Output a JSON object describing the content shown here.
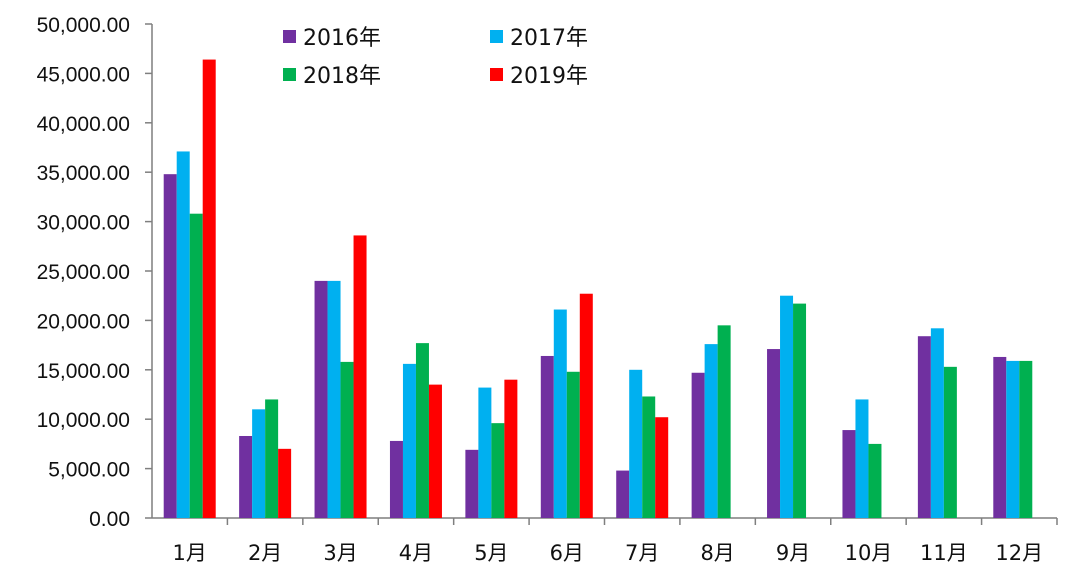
{
  "chart_data": {
    "type": "bar",
    "categories": [
      "1月",
      "2月",
      "3月",
      "4月",
      "5月",
      "6月",
      "7月",
      "8月",
      "9月",
      "10月",
      "11月",
      "12月"
    ],
    "series": [
      {
        "name": "2016年",
        "color": "#7030A0",
        "values": [
          34800,
          8300,
          24000,
          7800,
          6900,
          16400,
          4800,
          14700,
          17100,
          8900,
          18400,
          16300
        ]
      },
      {
        "name": "2017年",
        "color": "#00B0F0",
        "values": [
          37100,
          11000,
          24000,
          15600,
          13200,
          21100,
          15000,
          17600,
          22500,
          12000,
          19200,
          15900
        ]
      },
      {
        "name": "2018年",
        "color": "#00B050",
        "values": [
          30800,
          12000,
          15800,
          17700,
          9600,
          14800,
          12300,
          19500,
          21700,
          7500,
          15300,
          15900
        ]
      },
      {
        "name": "2019年",
        "color": "#FF0000",
        "values": [
          46400,
          7000,
          28600,
          13500,
          14000,
          22700,
          10200,
          null,
          null,
          null,
          null,
          null
        ]
      }
    ],
    "yticks": [
      "0.00",
      "5,000.00",
      "10,000.00",
      "15,000.00",
      "20,000.00",
      "25,000.00",
      "30,000.00",
      "35,000.00",
      "40,000.00",
      "45,000.00",
      "50,000.00"
    ],
    "ylim": [
      0,
      50000
    ],
    "grid": false,
    "legend_position": "top-center"
  }
}
